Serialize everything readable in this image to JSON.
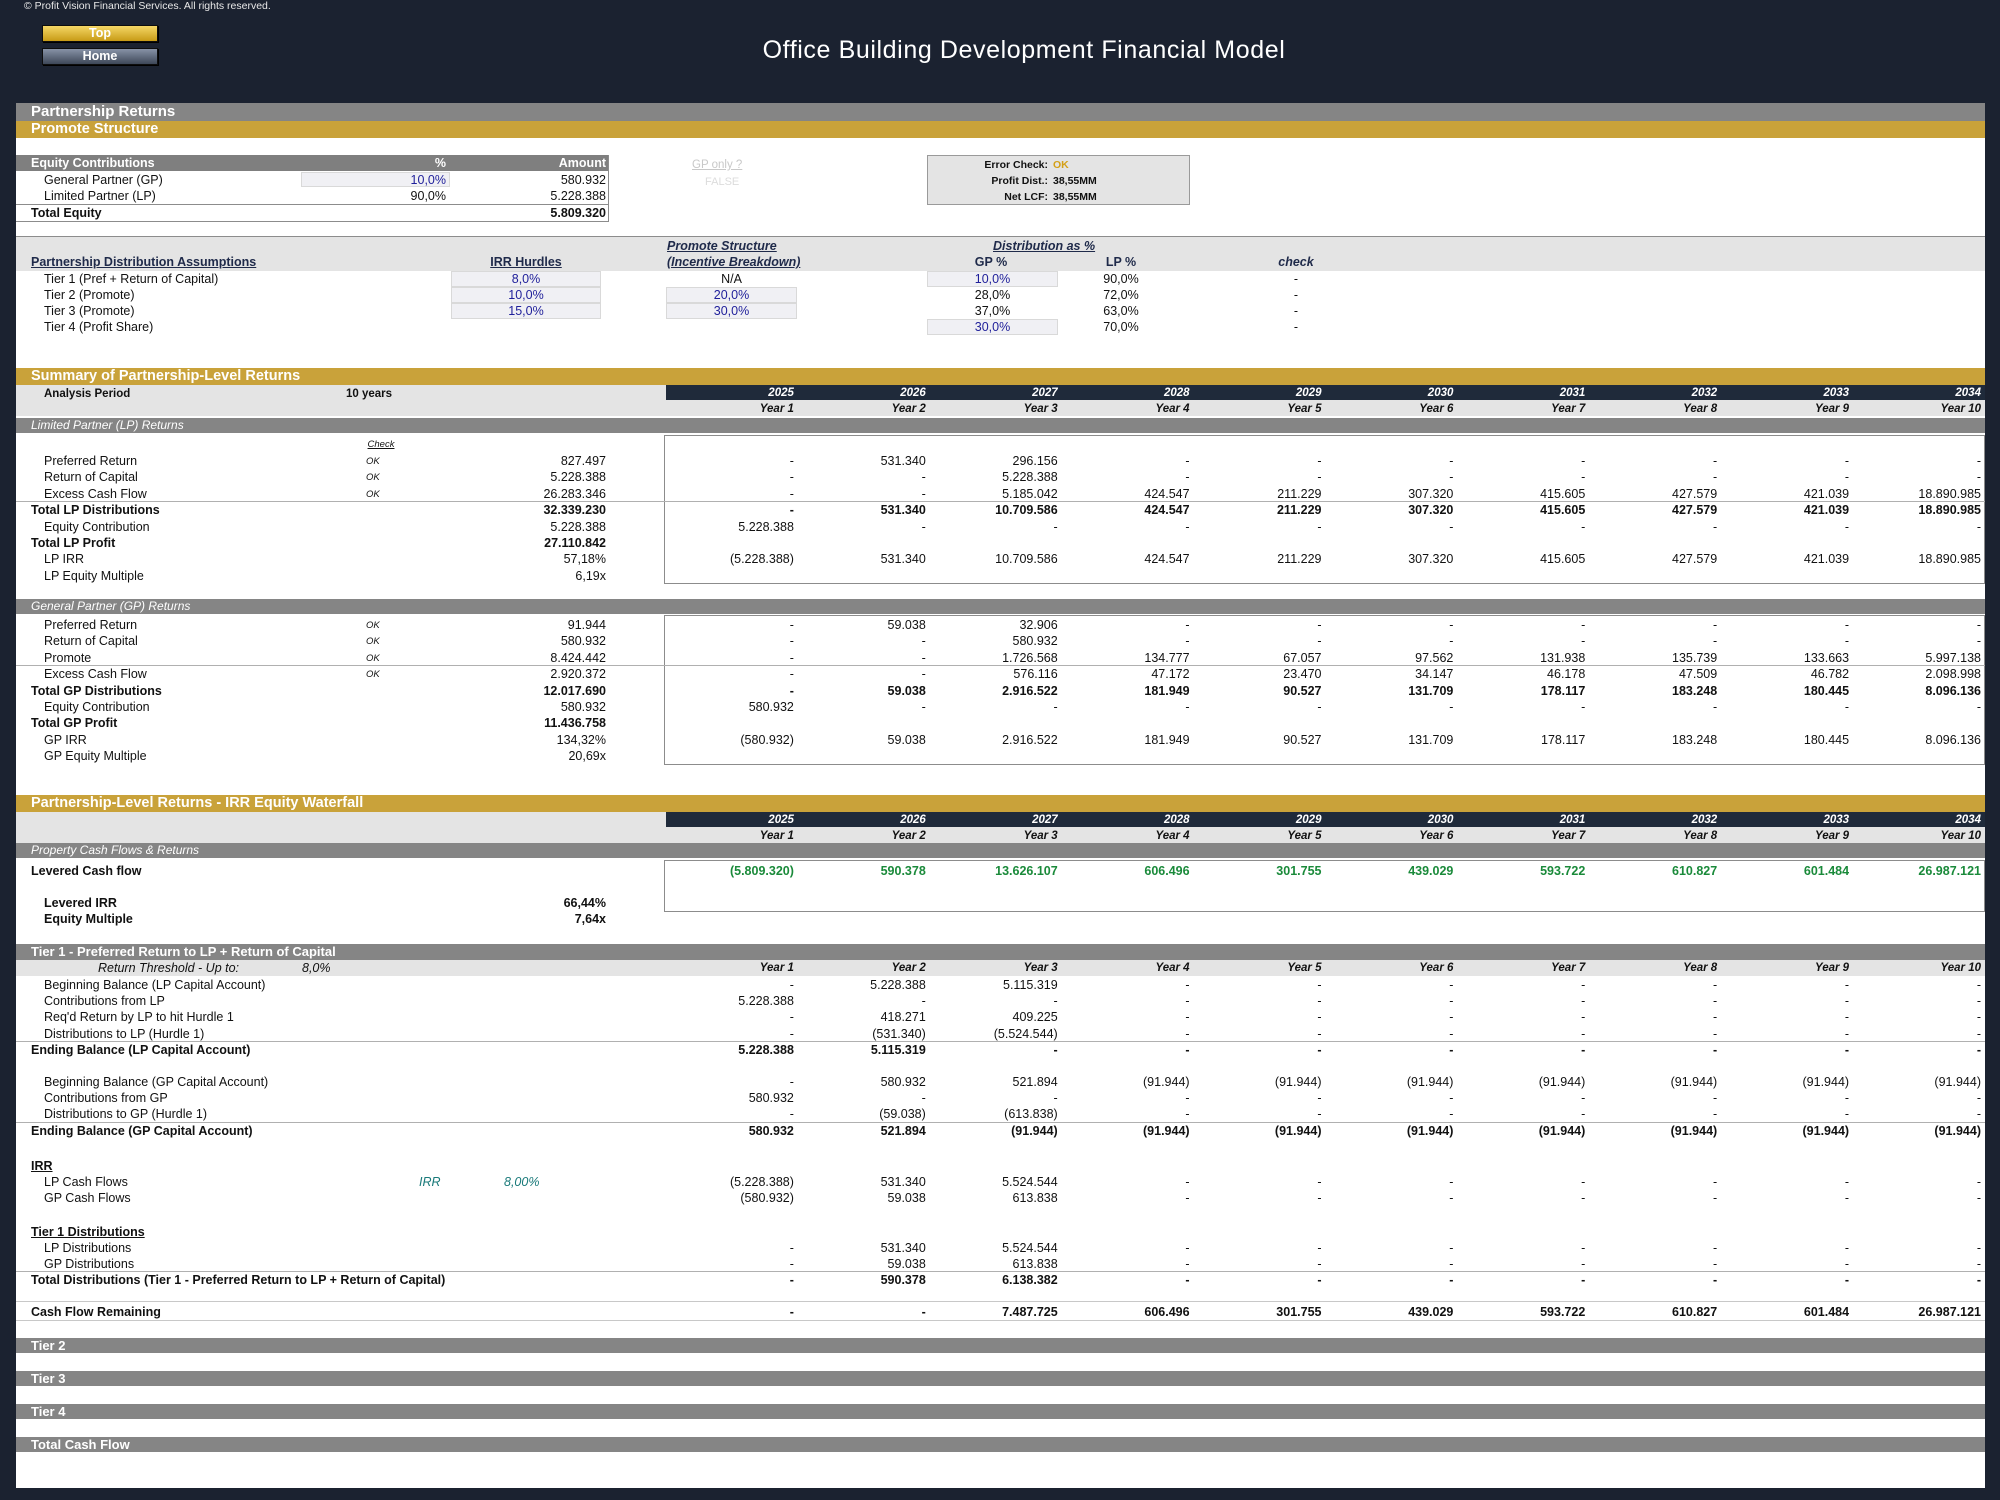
{
  "copyright": "© Profit Vision Financial Services. All rights reserved.",
  "nav": {
    "top": "Top",
    "home": "Home"
  },
  "title": "Office Building Development Financial Model",
  "section_title": "Partnership Returns",
  "promote_title": "Promote Structure",
  "equity": {
    "header": [
      "Equity Contributions",
      "%",
      "Amount"
    ],
    "rows": [
      {
        "label": "General Partner (GP)",
        "pct": "10,0%",
        "amount": "580.932"
      },
      {
        "label": "Limited Partner (LP)",
        "pct": "90,0%",
        "amount": "5.228.388"
      }
    ],
    "total_label": "Total Equity",
    "total": "5.809.320"
  },
  "gp_only": {
    "label": "GP only ?",
    "value": "FALSE"
  },
  "checks": {
    "error_label": "Error Check:",
    "error_value": "OK",
    "profit_label": "Profit Dist.:",
    "profit_value": "38,55MM",
    "lcf_label": "Net LCF:",
    "lcf_value": "38,55MM"
  },
  "assumptions": {
    "title": "Partnership Distribution Assumptions",
    "irr_head": "IRR Hurdles",
    "promote_head1": "Promote Structure",
    "promote_head2": "(Incentive Breakdown)",
    "dist_head": "Distribution as %",
    "gp_head": "GP %",
    "lp_head": "LP %",
    "check_head": "check",
    "rows": [
      {
        "label": "Tier 1 (Pref + Return of Capital)",
        "irr": "8,0%",
        "promote": "N/A",
        "gp": "10,0%",
        "lp": "90,0%",
        "check": "-"
      },
      {
        "label": "Tier 2 (Promote)",
        "irr": "10,0%",
        "promote": "20,0%",
        "gp": "28,0%",
        "lp": "72,0%",
        "check": "-"
      },
      {
        "label": "Tier 3 (Promote)",
        "irr": "15,0%",
        "promote": "30,0%",
        "gp": "37,0%",
        "lp": "63,0%",
        "check": "-"
      },
      {
        "label": "Tier 4 (Profit Share)",
        "irr": "",
        "promote": "",
        "gp": "30,0%",
        "lp": "70,0%",
        "check": "-"
      }
    ]
  },
  "summary": {
    "title": "Summary of Partnership-Level Returns",
    "analysis_label": "Analysis Period",
    "analysis_value": "10 years",
    "years": [
      "2025",
      "2026",
      "2027",
      "2028",
      "2029",
      "2030",
      "2031",
      "2032",
      "2033",
      "2034"
    ],
    "year_labels": [
      "Year 1",
      "Year 2",
      "Year 3",
      "Year 4",
      "Year 5",
      "Year 6",
      "Year 7",
      "Year 8",
      "Year 9",
      "Year 10"
    ],
    "check_label": "Check",
    "lp_title": "Limited Partner (LP) Returns",
    "lp_rows": [
      {
        "label": "Preferred Return",
        "ok": "OK",
        "total": "827.497",
        "vals": [
          "-",
          "531.340",
          "296.156",
          "-",
          "-",
          "-",
          "-",
          "-",
          "-",
          "-"
        ],
        "bold": false
      },
      {
        "label": "Return of Capital",
        "ok": "OK",
        "total": "5.228.388",
        "vals": [
          "-",
          "-",
          "5.228.388",
          "-",
          "-",
          "-",
          "-",
          "-",
          "-",
          "-"
        ],
        "bold": false
      },
      {
        "label": "Excess Cash Flow",
        "ok": "OK",
        "total": "26.283.346",
        "vals": [
          "-",
          "-",
          "5.185.042",
          "424.547",
          "211.229",
          "307.320",
          "415.605",
          "427.579",
          "421.039",
          "18.890.985"
        ],
        "bold": false
      },
      {
        "label": "Total LP Distributions",
        "ok": "",
        "total": "32.339.230",
        "vals": [
          "-",
          "531.340",
          "10.709.586",
          "424.547",
          "211.229",
          "307.320",
          "415.605",
          "427.579",
          "421.039",
          "18.890.985"
        ],
        "bold": true
      },
      {
        "label": "Equity Contribution",
        "ok": "",
        "total": "5.228.388",
        "vals": [
          "5.228.388",
          "-",
          "-",
          "-",
          "-",
          "-",
          "-",
          "-",
          "-",
          "-"
        ],
        "bold": false
      },
      {
        "label": "Total LP Profit",
        "ok": "",
        "total": "27.110.842",
        "vals": [
          "",
          "",
          "",
          "",
          "",
          "",
          "",
          "",
          "",
          ""
        ],
        "bold": true
      },
      {
        "label": "LP IRR",
        "ok": "",
        "total": "57,18%",
        "vals": [
          "(5.228.388)",
          "531.340",
          "10.709.586",
          "424.547",
          "211.229",
          "307.320",
          "415.605",
          "427.579",
          "421.039",
          "18.890.985"
        ],
        "bold": false
      },
      {
        "label": "LP Equity Multiple",
        "ok": "",
        "total": "6,19x",
        "vals": [
          "",
          "",
          "",
          "",
          "",
          "",
          "",
          "",
          "",
          ""
        ],
        "bold": false
      }
    ],
    "gp_title": "General Partner (GP) Returns",
    "gp_rows": [
      {
        "label": "Preferred Return",
        "ok": "OK",
        "total": "91.944",
        "vals": [
          "-",
          "59.038",
          "32.906",
          "-",
          "-",
          "-",
          "-",
          "-",
          "-",
          "-"
        ],
        "bold": false
      },
      {
        "label": "Return of Capital",
        "ok": "OK",
        "total": "580.932",
        "vals": [
          "-",
          "-",
          "580.932",
          "-",
          "-",
          "-",
          "-",
          "-",
          "-",
          "-"
        ],
        "bold": false
      },
      {
        "label": "Promote",
        "ok": "OK",
        "total": "8.424.442",
        "vals": [
          "-",
          "-",
          "1.726.568",
          "134.777",
          "67.057",
          "97.562",
          "131.938",
          "135.739",
          "133.663",
          "5.997.138"
        ],
        "bold": false
      },
      {
        "label": "Excess Cash Flow",
        "ok": "OK",
        "total": "2.920.372",
        "vals": [
          "-",
          "-",
          "576.116",
          "47.172",
          "23.470",
          "34.147",
          "46.178",
          "47.509",
          "46.782",
          "2.098.998"
        ],
        "bold": false
      },
      {
        "label": "Total GP Distributions",
        "ok": "",
        "total": "12.017.690",
        "vals": [
          "-",
          "59.038",
          "2.916.522",
          "181.949",
          "90.527",
          "131.709",
          "178.117",
          "183.248",
          "180.445",
          "8.096.136"
        ],
        "bold": true
      },
      {
        "label": "Equity Contribution",
        "ok": "",
        "total": "580.932",
        "vals": [
          "580.932",
          "-",
          "-",
          "-",
          "-",
          "-",
          "-",
          "-",
          "-",
          "-"
        ],
        "bold": false
      },
      {
        "label": "Total GP Profit",
        "ok": "",
        "total": "11.436.758",
        "vals": [
          "",
          "",
          "",
          "",
          "",
          "",
          "",
          "",
          "",
          ""
        ],
        "bold": true
      },
      {
        "label": "GP IRR",
        "ok": "",
        "total": "134,32%",
        "vals": [
          "(580.932)",
          "59.038",
          "2.916.522",
          "181.949",
          "90.527",
          "131.709",
          "178.117",
          "183.248",
          "180.445",
          "8.096.136"
        ],
        "bold": false
      },
      {
        "label": "GP Equity Multiple",
        "ok": "",
        "total": "20,69x",
        "vals": [
          "",
          "",
          "",
          "",
          "",
          "",
          "",
          "",
          "",
          ""
        ],
        "bold": false
      }
    ]
  },
  "waterfall": {
    "title": "Partnership-Level Returns - IRR Equity Waterfall",
    "pcf_title": "Property Cash Flows & Returns",
    "lcf_label": "Levered Cash flow",
    "lcf_vals": [
      "(5.809.320)",
      "590.378",
      "13.626.107",
      "606.496",
      "301.755",
      "439.029",
      "593.722",
      "610.827",
      "601.484",
      "26.987.121"
    ],
    "irr_label": "Levered IRR",
    "irr_value": "66,44%",
    "em_label": "Equity Multiple",
    "em_value": "7,64x",
    "tier1_title": "Tier 1 - Preferred Return to LP + Return of Capital",
    "threshold_label": "Return Threshold - Up to:",
    "threshold_value": "8,0%",
    "tier1_rows": [
      {
        "label": "Beginning Balance (LP Capital Account)",
        "total": "",
        "vals": [
          "-",
          "5.228.388",
          "5.115.319",
          "-",
          "-",
          "-",
          "-",
          "-",
          "-",
          "-"
        ],
        "bold": false
      },
      {
        "label": "Contributions from LP",
        "total": "",
        "vals": [
          "5.228.388",
          "-",
          "-",
          "-",
          "-",
          "-",
          "-",
          "-",
          "-",
          "-"
        ],
        "bold": false
      },
      {
        "label": "Req'd Return by LP to hit Hurdle 1",
        "total": "",
        "vals": [
          "-",
          "418.271",
          "409.225",
          "-",
          "-",
          "-",
          "-",
          "-",
          "-",
          "-"
        ],
        "bold": false
      },
      {
        "label": "Distributions to LP (Hurdle 1)",
        "total": "",
        "vals": [
          "-",
          "(531.340)",
          "(5.524.544)",
          "-",
          "-",
          "-",
          "-",
          "-",
          "-",
          "-"
        ],
        "bold": false
      },
      {
        "label": "Ending Balance (LP Capital Account)",
        "total": "",
        "vals": [
          "5.228.388",
          "5.115.319",
          "-",
          "-",
          "-",
          "-",
          "-",
          "-",
          "-",
          "-"
        ],
        "bold": true
      },
      {
        "label": "Beginning Balance (GP Capital Account)",
        "total": "",
        "vals": [
          "-",
          "580.932",
          "521.894",
          "(91.944)",
          "(91.944)",
          "(91.944)",
          "(91.944)",
          "(91.944)",
          "(91.944)",
          "(91.944)"
        ],
        "bold": false
      },
      {
        "label": "Contributions from GP",
        "total": "",
        "vals": [
          "580.932",
          "-",
          "-",
          "-",
          "-",
          "-",
          "-",
          "-",
          "-",
          "-"
        ],
        "bold": false
      },
      {
        "label": "Distributions to GP (Hurdle 1)",
        "total": "",
        "vals": [
          "-",
          "(59.038)",
          "(613.838)",
          "-",
          "-",
          "-",
          "-",
          "-",
          "-",
          "-"
        ],
        "bold": false
      },
      {
        "label": "Ending Balance (GP Capital Account)",
        "total": "",
        "vals": [
          "580.932",
          "521.894",
          "(91.944)",
          "(91.944)",
          "(91.944)",
          "(91.944)",
          "(91.944)",
          "(91.944)",
          "(91.944)",
          "(91.944)"
        ],
        "bold": true
      }
    ],
    "irr_section": "IRR",
    "irr_tag": "IRR",
    "irr_rate": "8,00%",
    "irr_rows": [
      {
        "label": "LP Cash Flows",
        "vals": [
          "(5.228.388)",
          "531.340",
          "5.524.544",
          "-",
          "-",
          "-",
          "-",
          "-",
          "-",
          "-"
        ]
      },
      {
        "label": "GP Cash Flows",
        "vals": [
          "(580.932)",
          "59.038",
          "613.838",
          "-",
          "-",
          "-",
          "-",
          "-",
          "-",
          "-"
        ]
      }
    ],
    "t1d_section": "Tier 1 Distributions",
    "t1d_rows": [
      {
        "label": "LP Distributions",
        "vals": [
          "-",
          "531.340",
          "5.524.544",
          "-",
          "-",
          "-",
          "-",
          "-",
          "-",
          "-"
        ],
        "bold": false
      },
      {
        "label": "GP Distributions",
        "vals": [
          "-",
          "59.038",
          "613.838",
          "-",
          "-",
          "-",
          "-",
          "-",
          "-",
          "-"
        ],
        "bold": false
      },
      {
        "label": "Total Distributions (Tier 1 - Preferred Return to LP + Return of Capital)",
        "vals": [
          "-",
          "590.378",
          "6.138.382",
          "-",
          "-",
          "-",
          "-",
          "-",
          "-",
          "-"
        ],
        "bold": true
      }
    ],
    "cfr_label": "Cash Flow Remaining",
    "cfr_vals": [
      "-",
      "-",
      "7.487.725",
      "606.496",
      "301.755",
      "439.029",
      "593.722",
      "610.827",
      "601.484",
      "26.987.121"
    ],
    "tier2": "Tier 2",
    "tier3": "Tier 3",
    "tier4": "Tier 4",
    "total_cf": "Total Cash Flow"
  },
  "colors": {
    "gold": "#c9a23a",
    "gray": "#858585",
    "navy": "#1f2a3a",
    "green": "#1a8a3a",
    "blue": "#1f1f9a"
  }
}
